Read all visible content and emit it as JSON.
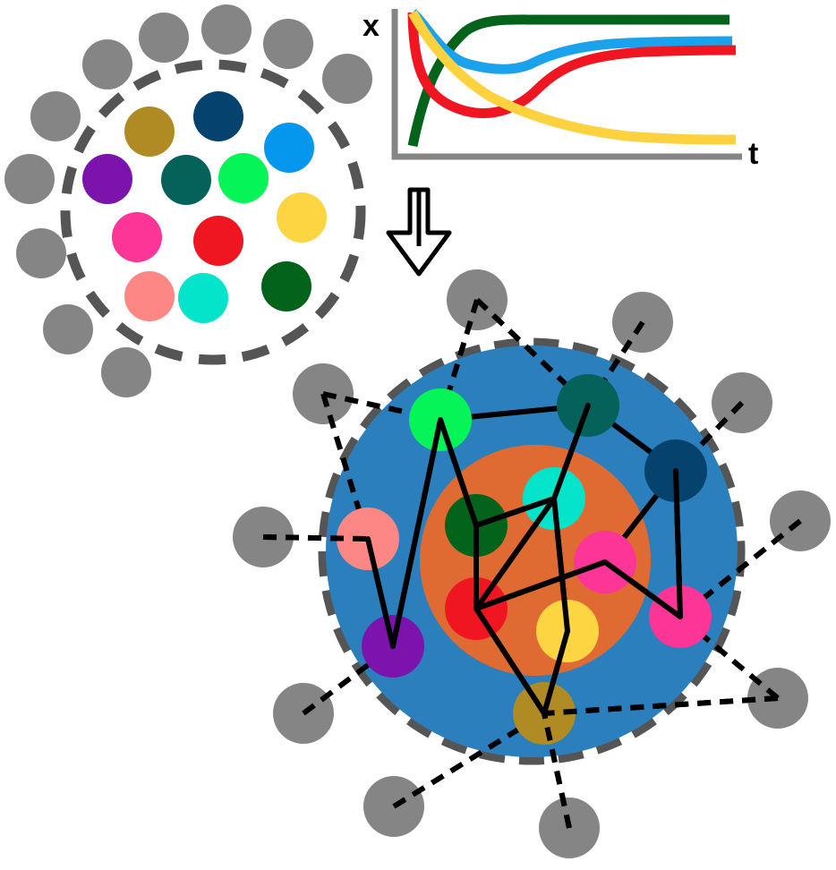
{
  "colors": {
    "gray": "#858585",
    "ring": "#555555",
    "blue_disc": "#2b7fbc",
    "orange_core": "#e06b32",
    "edge": "#000000",
    "arrow_fill": "#ffffff",
    "arrow_stroke": "#000000"
  },
  "species_colors": {
    "olive": "#b08a22",
    "navy": "#06426e",
    "azure": "#0596ee",
    "purple": "#7c13ad",
    "teal": "#04625a",
    "lime": "#05f559",
    "gold": "#fdd442",
    "pink": "#fc3596",
    "red": "#ef1621",
    "green": "#04631b",
    "salmon": "#fd8784",
    "cyan": "#04e4cb"
  },
  "plot": {
    "x_axis_label": "t",
    "y_axis_label": "x",
    "series_colors": [
      "#04631b",
      "#1aa3ec",
      "#ef1621",
      "#fed23f"
    ]
  },
  "transition_arrow": {
    "icon": "double-down-arrow-icon"
  }
}
